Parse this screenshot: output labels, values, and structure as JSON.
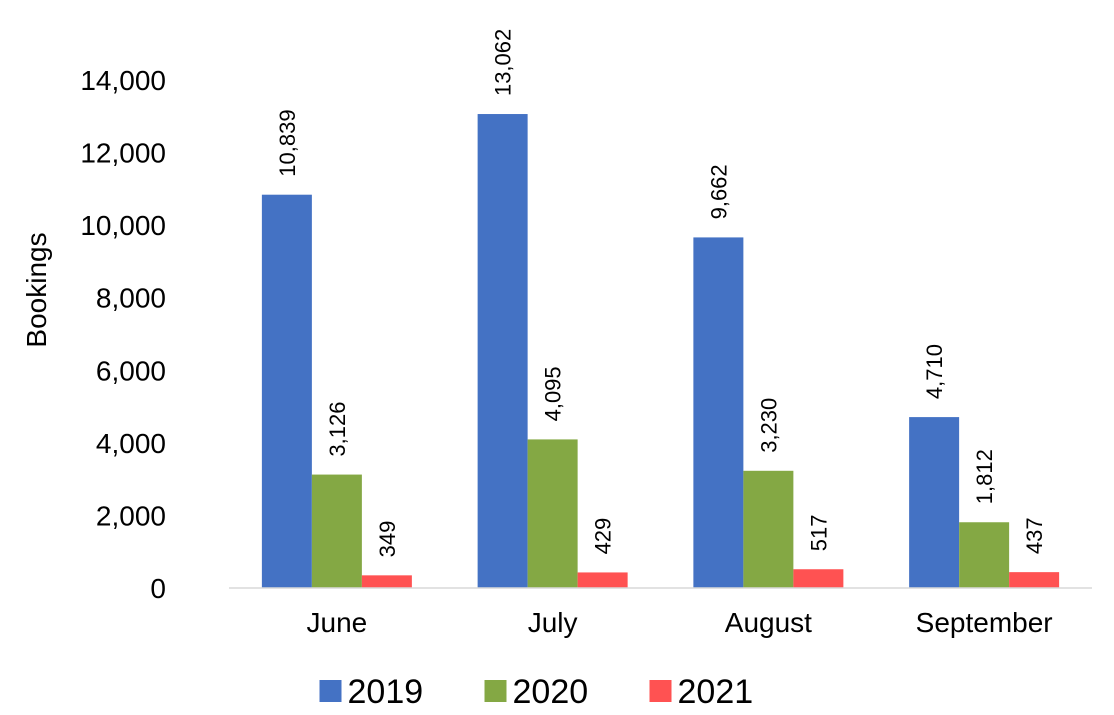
{
  "chart_data": {
    "type": "bar",
    "title": "",
    "xlabel": "",
    "ylabel": "Bookings",
    "categories": [
      "June",
      "July",
      "August",
      "September"
    ],
    "series": [
      {
        "name": "2019",
        "color": "#4472C4",
        "values": [
          10839,
          13062,
          9662,
          4710
        ]
      },
      {
        "name": "2020",
        "color": "#84A844",
        "values": [
          3126,
          4095,
          3230,
          1812
        ]
      },
      {
        "name": "2021",
        "color": "#FF5252",
        "values": [
          349,
          429,
          517,
          437
        ]
      }
    ],
    "ylim": [
      0,
      14000
    ],
    "yticks": [
      0,
      2000,
      4000,
      6000,
      8000,
      10000,
      12000,
      14000
    ],
    "ytick_labels": [
      "0",
      "2,000",
      "4,000",
      "6,000",
      "8,000",
      "10,000",
      "12,000",
      "14,000"
    ],
    "data_labels": [
      [
        "10,839",
        "13,062",
        "9,662",
        "4,710"
      ],
      [
        "3,126",
        "4,095",
        "3,230",
        "1,812"
      ],
      [
        "349",
        "429",
        "517",
        "437"
      ]
    ],
    "grid": false,
    "legend_position": "bottom"
  }
}
